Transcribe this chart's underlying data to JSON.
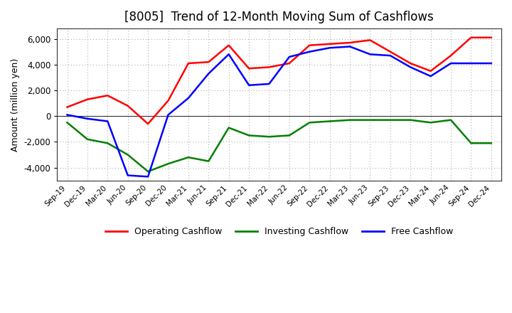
{
  "title": "[8005]  Trend of 12-Month Moving Sum of Cashflows",
  "ylabel": "Amount (million yen)",
  "x_labels": [
    "Sep-19",
    "Dec-19",
    "Mar-20",
    "Jun-20",
    "Sep-20",
    "Dec-20",
    "Mar-21",
    "Jun-21",
    "Sep-21",
    "Dec-21",
    "Mar-22",
    "Jun-22",
    "Sep-22",
    "Dec-22",
    "Mar-23",
    "Jun-23",
    "Sep-23",
    "Dec-23",
    "Mar-24",
    "Jun-24",
    "Sep-24",
    "Dec-24"
  ],
  "operating": [
    700,
    1300,
    1600,
    800,
    -600,
    1200,
    4100,
    4200,
    5500,
    3700,
    3800,
    4100,
    5500,
    5600,
    5700,
    5900,
    5000,
    4100,
    3500,
    4700,
    6100,
    6100
  ],
  "investing": [
    -500,
    -1800,
    -2100,
    -3000,
    -4300,
    -3700,
    -3200,
    -3500,
    -900,
    -1500,
    -1600,
    -1500,
    -500,
    -400,
    -300,
    -300,
    -300,
    -300,
    -500,
    -300,
    -2100,
    -2100
  ],
  "free": [
    100,
    -200,
    -400,
    -4600,
    -4700,
    100,
    1400,
    3300,
    4800,
    2400,
    2500,
    4600,
    5000,
    5300,
    5400,
    4800,
    4700,
    3800,
    3100,
    4100,
    4100,
    4100
  ],
  "operating_color": "#ff0000",
  "investing_color": "#008000",
  "free_color": "#0000ff",
  "ylim": [
    -5000,
    6800
  ],
  "yticks": [
    -4000,
    -2000,
    0,
    2000,
    4000,
    6000
  ],
  "background_color": "#ffffff",
  "plot_bg_color": "#ffffff",
  "grid_color": "#999999",
  "title_fontsize": 12,
  "legend_labels": [
    "Operating Cashflow",
    "Investing Cashflow",
    "Free Cashflow"
  ]
}
